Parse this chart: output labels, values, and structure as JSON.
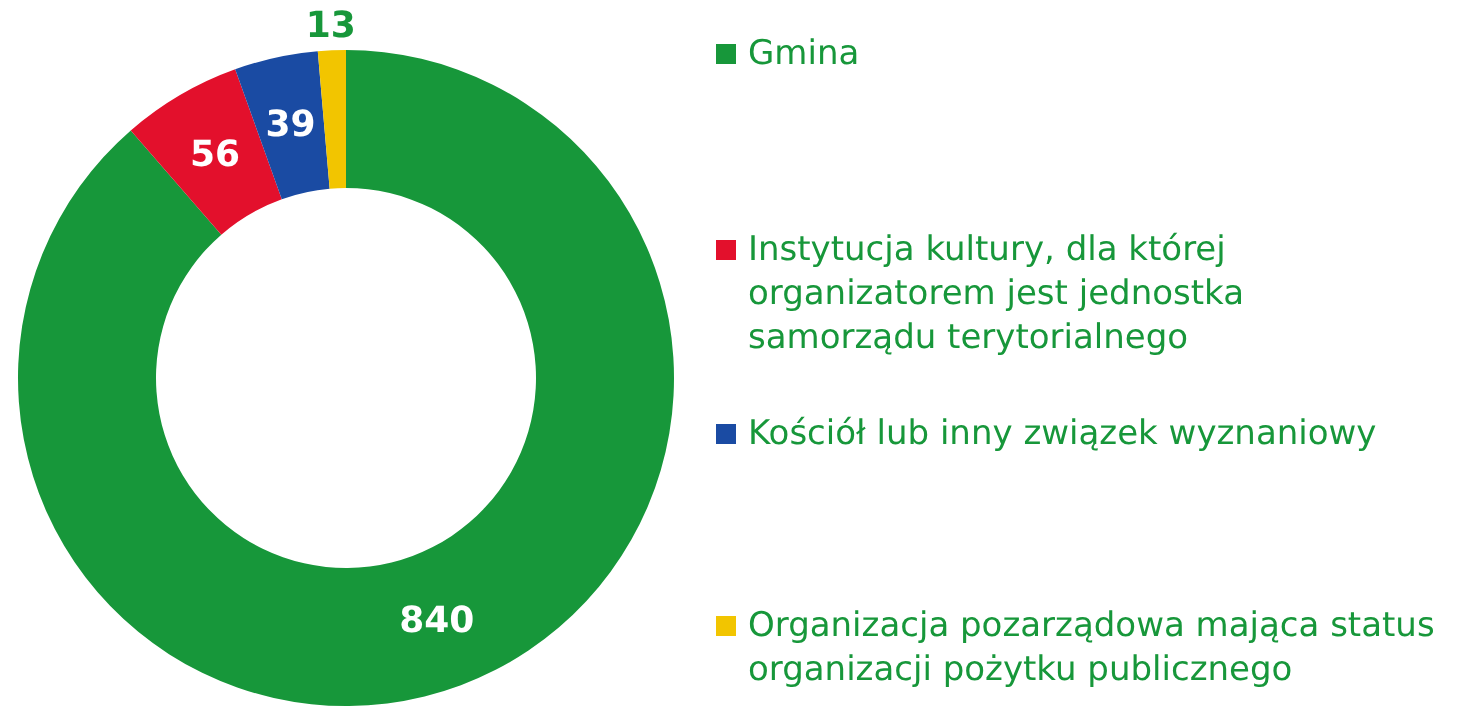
{
  "chart_data": {
    "type": "donut",
    "categories": [
      "Gmina",
      "Instytucja kultury, dla której organizatorem jest jednostka samorządu terytorialnego",
      "Kościół lub inny związek wyznaniowy",
      "Organizacja pozarządowa mająca status organizacji pożytku publicznego"
    ],
    "values": [
      840,
      56,
      39,
      13
    ],
    "colors": [
      "#17973a",
      "#e3102c",
      "#1a4ba3",
      "#f2c500"
    ],
    "data_labels": true,
    "legend": "right"
  }
}
